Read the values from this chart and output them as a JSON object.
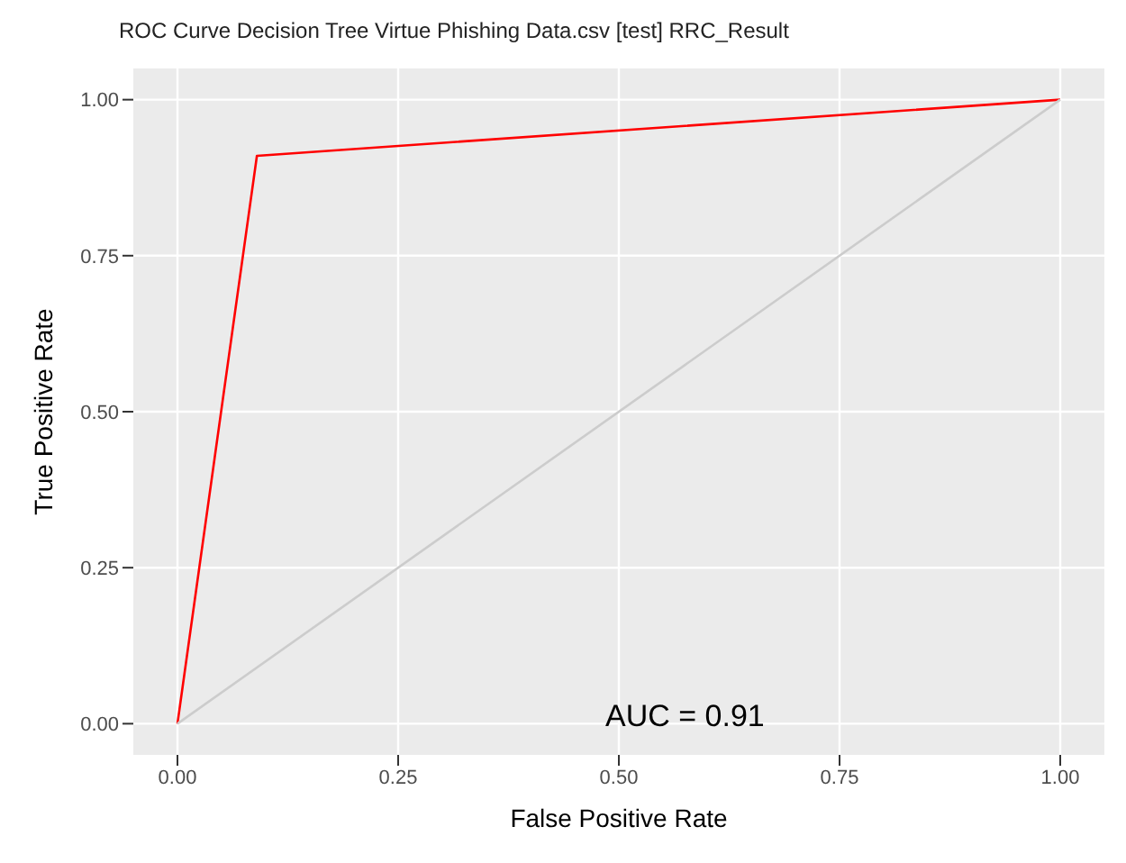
{
  "chart_data": {
    "type": "line",
    "title": "ROC Curve Decision Tree Virtue Phishing Data.csv [test] RRC_Result",
    "xlabel": "False Positive Rate",
    "ylabel": "True Positive Rate",
    "series": [
      {
        "color": "#ff0000",
        "x": [
          0,
          0.09,
          1
        ],
        "values": [
          0,
          0.91,
          1
        ]
      },
      {
        "color": "#cccccc",
        "x": [
          0,
          1
        ],
        "values": [
          0,
          1
        ]
      }
    ],
    "xlim": [
      -0.05,
      1.05
    ],
    "ylim": [
      -0.05,
      1.05
    ],
    "xticks": [
      {
        "value": 0,
        "label": "0.00"
      },
      {
        "value": 0.25,
        "label": "0.25"
      },
      {
        "value": 0.5,
        "label": "0.50"
      },
      {
        "value": 0.75,
        "label": "0.75"
      },
      {
        "value": 1,
        "label": "1.00"
      }
    ],
    "yticks": [
      {
        "value": 0,
        "label": "0.00"
      },
      {
        "value": 0.25,
        "label": "0.25"
      },
      {
        "value": 0.5,
        "label": "0.50"
      },
      {
        "value": 0.75,
        "label": "0.75"
      },
      {
        "value": 1,
        "label": "1.00"
      }
    ],
    "annotations": [
      "AUC = 0.91"
    ],
    "grid": true,
    "marker": "none",
    "line_style": "solid"
  }
}
